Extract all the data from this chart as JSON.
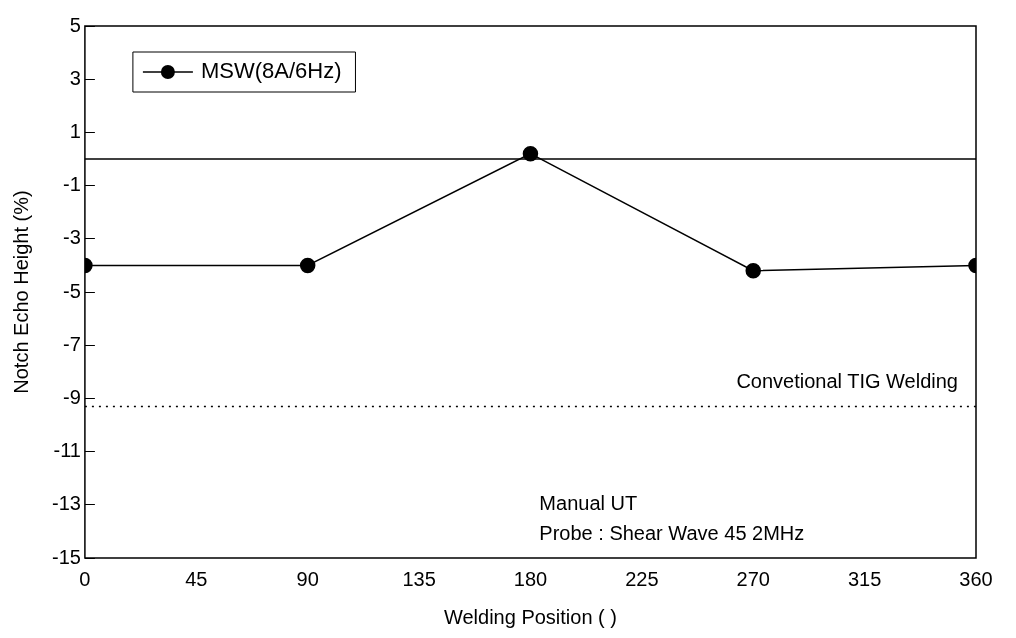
{
  "chart_data": {
    "type": "line",
    "xlabel": "Welding Position ( )",
    "ylabel": "Notch Echo Height (%)",
    "x": [
      0,
      90,
      180,
      270,
      360
    ],
    "series": [
      {
        "name": "MSW(8A/6Hz)",
        "color": "#000000",
        "values": [
          -4,
          -4,
          0.2,
          -4.2,
          -4
        ]
      }
    ],
    "xlim": [
      0,
      360
    ],
    "xticks": [
      0,
      45,
      90,
      135,
      180,
      225,
      270,
      315,
      360
    ],
    "ylim": [
      -15,
      5
    ],
    "yticks": [
      5,
      3,
      1,
      -1,
      -3,
      -5,
      -7,
      -9,
      -11,
      -13,
      -15
    ],
    "ref_lines": [
      {
        "axis": "y",
        "value": 0,
        "line_style": "solid",
        "color": "#000000"
      },
      {
        "axis": "y",
        "value": -9.3,
        "label": "Convetional TIG Welding",
        "line_style": "dotted",
        "color": "#000000"
      }
    ],
    "annotations": [
      "Manual UT",
      "Probe : Shear Wave 45 2MHz"
    ],
    "grid": false,
    "legend": "top left",
    "marker": "circle",
    "line_style": "solid"
  }
}
